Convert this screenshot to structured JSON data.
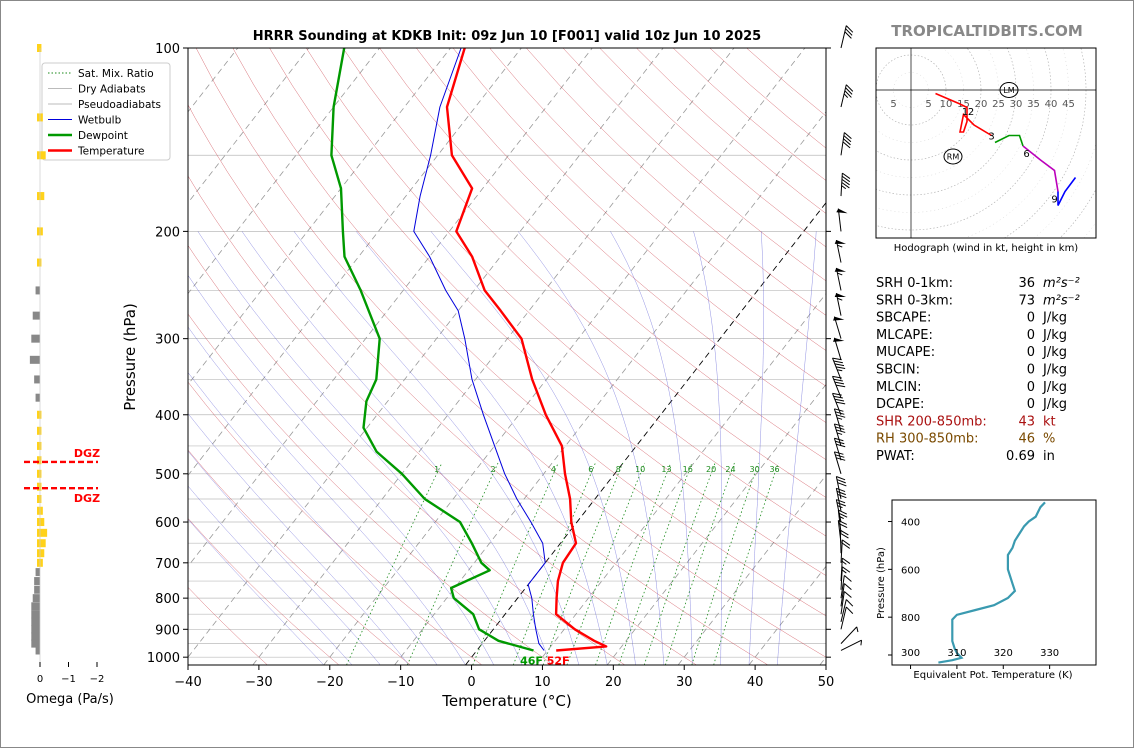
{
  "title": "HRRR Sounding at KDKB Init: 09z Jun 10 [F001] valid 10z Jun 10 2025",
  "brand": "TROPICALTIDBITS.COM",
  "chart_data": [
    {
      "type": "line",
      "name": "skew-t",
      "xlabel": "Temperature (°C)",
      "ylabel": "Pressure (hPa)",
      "xlim": [
        -40,
        50
      ],
      "ylim": [
        1030,
        100
      ],
      "y_scale": "log",
      "x_ticks": [
        "−40",
        "−30",
        "−20",
        "−10",
        "0",
        "10",
        "20",
        "30",
        "40",
        "50"
      ],
      "x_tick_values": [
        -40,
        -30,
        -20,
        -10,
        0,
        10,
        20,
        30,
        40,
        50
      ],
      "y_ticks": [
        "100",
        "200",
        "300",
        "400",
        "500",
        "600",
        "700",
        "800",
        "900",
        "1000"
      ],
      "y_tick_values": [
        100,
        200,
        300,
        400,
        500,
        600,
        700,
        800,
        900,
        1000
      ],
      "legend": [
        "Sat. Mix. Ratio",
        "Dry Adiabats",
        "Pseudoadiabats",
        "Wetbulb",
        "Dewpoint",
        "Temperature"
      ],
      "legend_position": "top-left",
      "colors": {
        "temperature": "#ff0000",
        "dewpoint": "#009900",
        "wetbulb": "#0000dd",
        "dry": "#c8323c",
        "moist": "#4a4ad0",
        "mixing": "#1a8a1a"
      },
      "mixing_labels": [
        "1",
        "2",
        "4",
        "6",
        "8",
        "10",
        "13",
        "16",
        "20",
        "24",
        "30",
        "36"
      ],
      "mixing_values": [
        1,
        2,
        4,
        6,
        8,
        10,
        13,
        16,
        20,
        24,
        30,
        36
      ],
      "surface_temp_label": "52F",
      "surface_dew_label": "46F",
      "temperature": [
        [
          975,
          11.2
        ],
        [
          960,
          17.8
        ],
        [
          940,
          15.5
        ],
        [
          900,
          11.5
        ],
        [
          850,
          7.2
        ],
        [
          800,
          5.5
        ],
        [
          750,
          3.8
        ],
        [
          700,
          2.5
        ],
        [
          650,
          2.2
        ],
        [
          600,
          -0.8
        ],
        [
          550,
          -3.5
        ],
        [
          500,
          -7.0
        ],
        [
          450,
          -10.5
        ],
        [
          400,
          -16.2
        ],
        [
          350,
          -22.0
        ],
        [
          300,
          -28.0
        ],
        [
          270,
          -34.0
        ],
        [
          250,
          -38.5
        ],
        [
          220,
          -44.0
        ],
        [
          200,
          -49.0
        ],
        [
          170,
          -51.5
        ],
        [
          150,
          -58.0
        ],
        [
          125,
          -64.0
        ],
        [
          100,
          -68.0
        ]
      ],
      "dewpoint": [
        [
          975,
          8.0
        ],
        [
          940,
          2.0
        ],
        [
          900,
          -2.0
        ],
        [
          850,
          -4.5
        ],
        [
          800,
          -9.0
        ],
        [
          770,
          -10.5
        ],
        [
          720,
          -7.0
        ],
        [
          700,
          -9.0
        ],
        [
          650,
          -12.5
        ],
        [
          600,
          -16.5
        ],
        [
          550,
          -24.0
        ],
        [
          500,
          -30.0
        ],
        [
          460,
          -36.0
        ],
        [
          420,
          -40.5
        ],
        [
          380,
          -43.0
        ],
        [
          350,
          -44.0
        ],
        [
          300,
          -48.0
        ],
        [
          250,
          -56.0
        ],
        [
          220,
          -62.0
        ],
        [
          200,
          -65.0
        ],
        [
          170,
          -70.0
        ],
        [
          150,
          -75.0
        ],
        [
          125,
          -80.0
        ],
        [
          100,
          -85.0
        ]
      ],
      "wetbulb": [
        [
          975,
          9.5
        ],
        [
          950,
          8.0
        ],
        [
          900,
          6.0
        ],
        [
          850,
          4.0
        ],
        [
          800,
          2.0
        ],
        [
          760,
          0.0
        ],
        [
          700,
          0.0
        ],
        [
          650,
          -2.5
        ],
        [
          600,
          -6.5
        ],
        [
          550,
          -11.0
        ],
        [
          500,
          -15.5
        ],
        [
          450,
          -20.0
        ],
        [
          400,
          -25.0
        ],
        [
          350,
          -30.5
        ],
        [
          300,
          -36.0
        ],
        [
          270,
          -40.0
        ],
        [
          250,
          -44.0
        ],
        [
          220,
          -50.0
        ],
        [
          200,
          -55.0
        ],
        [
          175,
          -58.0
        ],
        [
          150,
          -61.0
        ],
        [
          125,
          -65.0
        ],
        [
          100,
          -68.5
        ]
      ]
    },
    {
      "type": "line",
      "name": "hodograph",
      "caption": "Hodograph (wind in kt, height in km)",
      "ring_labels": [
        "5",
        "5",
        "10",
        "15",
        "20",
        "25",
        "30",
        "35",
        "40",
        "45"
      ],
      "ring_values": [
        -5,
        5,
        10,
        15,
        20,
        25,
        30,
        35,
        40,
        45
      ],
      "height_labels": [
        "1",
        "2",
        "3",
        "6",
        "9"
      ],
      "lm_label": "LM",
      "rm_label": "RM",
      "segments": [
        {
          "name": "0-3km",
          "color": "#ff0000",
          "u_v": [
            [
              7,
              -1
            ],
            [
              14,
              -4
            ],
            [
              16,
              -5
            ],
            [
              16,
              -9
            ],
            [
              15,
              -12
            ],
            [
              14,
              -12
            ],
            [
              15,
              -7
            ],
            [
              18,
              -10
            ],
            [
              23,
              -13
            ]
          ]
        },
        {
          "name": "3-6km",
          "color": "#009900",
          "u_v": [
            [
              24,
              -15
            ],
            [
              28,
              -13
            ],
            [
              31,
              -13
            ],
            [
              32,
              -16
            ]
          ]
        },
        {
          "name": "6-9km",
          "color": "#bb00bb",
          "u_v": [
            [
              32,
              -16
            ],
            [
              37,
              -20
            ],
            [
              41,
              -23
            ],
            [
              42,
              -29
            ]
          ]
        },
        {
          "name": "9-12km",
          "color": "#0000ff",
          "u_v": [
            [
              42,
              -29
            ],
            [
              42,
              -33
            ],
            [
              44,
              -29
            ],
            [
              47,
              -25
            ]
          ]
        }
      ],
      "lm_uv": [
        28,
        0
      ],
      "rm_uv": [
        12,
        -19
      ],
      "height_marks": {
        "1": [
          16,
          -6
        ],
        "2": [
          16,
          -6
        ],
        "3": [
          23,
          -13
        ],
        "6": [
          33,
          -18
        ],
        "9": [
          41,
          -31
        ]
      }
    },
    {
      "type": "line",
      "name": "theta-e",
      "xlabel": "Equivalent Pot. Temperature (K)",
      "ylabel": "Pressure (hPa)",
      "xlim": [
        296,
        340
      ],
      "ylim": [
        1000,
        310
      ],
      "x_ticks": [
        "300",
        "310",
        "320",
        "330"
      ],
      "x_tick_values": [
        300,
        310,
        320,
        330
      ],
      "y_ticks": [
        "400",
        "600",
        "800"
      ],
      "y_tick_values": [
        400,
        600,
        800
      ],
      "color": "#3a9ab0",
      "values": [
        [
          990,
          306
        ],
        [
          980,
          309
        ],
        [
          970,
          311
        ],
        [
          950,
          310
        ],
        [
          930,
          309.5
        ],
        [
          900,
          309
        ],
        [
          870,
          309
        ],
        [
          840,
          309
        ],
        [
          810,
          309
        ],
        [
          790,
          310
        ],
        [
          770,
          314
        ],
        [
          750,
          318
        ],
        [
          720,
          321
        ],
        [
          690,
          322.5
        ],
        [
          660,
          322
        ],
        [
          630,
          321.5
        ],
        [
          600,
          321
        ],
        [
          570,
          321
        ],
        [
          540,
          321
        ],
        [
          510,
          322
        ],
        [
          480,
          322.5
        ],
        [
          450,
          323.5
        ],
        [
          420,
          324.5
        ],
        [
          400,
          325.5
        ],
        [
          380,
          327
        ],
        [
          360,
          327.5
        ],
        [
          340,
          328
        ],
        [
          320,
          329
        ]
      ]
    },
    {
      "type": "bar",
      "name": "omega",
      "xlabel": "Omega (Pa/s)",
      "x_ticks": [
        "0",
        "−1",
        "−2"
      ],
      "x_tick_values": [
        0,
        -1,
        -2
      ],
      "dgz_label": "DGZ",
      "dgz_pressures": [
        478,
        528
      ],
      "colors": {
        "up": "#ffd21a",
        "down": "#888888"
      },
      "values": [
        [
          100,
          -0.05
        ],
        [
          130,
          -0.1
        ],
        [
          150,
          -0.2
        ],
        [
          175,
          -0.15
        ],
        [
          200,
          -0.1
        ],
        [
          225,
          -0.05
        ],
        [
          250,
          0.05
        ],
        [
          275,
          0.15
        ],
        [
          300,
          0.2
        ],
        [
          325,
          0.25
        ],
        [
          350,
          0.1
        ],
        [
          375,
          0.05
        ],
        [
          400,
          -0.05
        ],
        [
          425,
          -0.05
        ],
        [
          450,
          -0.05
        ],
        [
          475,
          -0.05
        ],
        [
          500,
          -0.05
        ],
        [
          525,
          -0.05
        ],
        [
          550,
          -0.05
        ],
        [
          575,
          -0.1
        ],
        [
          600,
          -0.15
        ],
        [
          625,
          -0.25
        ],
        [
          650,
          -0.2
        ],
        [
          675,
          -0.15
        ],
        [
          700,
          -0.1
        ],
        [
          725,
          0.05
        ],
        [
          750,
          0.1
        ],
        [
          775,
          0.1
        ],
        [
          800,
          0.15
        ],
        [
          825,
          0.2
        ],
        [
          850,
          0.2
        ],
        [
          875,
          0.2
        ],
        [
          900,
          0.2
        ],
        [
          925,
          0.2
        ],
        [
          950,
          0.2
        ],
        [
          975,
          0.05
        ]
      ]
    },
    {
      "type": "table",
      "name": "parameters",
      "rows": [
        {
          "label": "SRH 0-1km:",
          "value": "36",
          "unit": "m²s⁻²",
          "color": "#000000"
        },
        {
          "label": "SRH 0-3km:",
          "value": "73",
          "unit": "m²s⁻²",
          "color": "#000000"
        },
        {
          "label": "SBCAPE:",
          "value": "0",
          "unit": "J/kg",
          "color": "#000000"
        },
        {
          "label": "MLCAPE:",
          "value": "0",
          "unit": "J/kg",
          "color": "#000000"
        },
        {
          "label": "MUCAPE:",
          "value": "0",
          "unit": "J/kg",
          "color": "#000000"
        },
        {
          "label": "SBCIN:",
          "value": "0",
          "unit": "J/kg",
          "color": "#000000"
        },
        {
          "label": "MLCIN:",
          "value": "0",
          "unit": "J/kg",
          "color": "#000000"
        },
        {
          "label": "DCAPE:",
          "value": "0",
          "unit": "J/kg",
          "color": "#000000"
        },
        {
          "label": "SHR 200-850mb:",
          "value": "43",
          "unit": "kt",
          "color": "#aa1111"
        },
        {
          "label": "RH 300-850mb:",
          "value": "46",
          "unit": "%",
          "color": "#7a4a00"
        },
        {
          "label": "PWAT:",
          "value": "0.69",
          "unit": "in",
          "color": "#000000"
        }
      ]
    },
    {
      "type": "scatter",
      "name": "wind-barbs",
      "values": [
        [
          100,
          300,
          30
        ],
        [
          125,
          300,
          35
        ],
        [
          150,
          295,
          40
        ],
        [
          175,
          290,
          45
        ],
        [
          200,
          280,
          50
        ],
        [
          225,
          275,
          55
        ],
        [
          250,
          275,
          55
        ],
        [
          275,
          275,
          55
        ],
        [
          300,
          270,
          50
        ],
        [
          325,
          270,
          50
        ],
        [
          350,
          265,
          45
        ],
        [
          375,
          265,
          40
        ],
        [
          400,
          265,
          38
        ],
        [
          425,
          270,
          35
        ],
        [
          450,
          270,
          35
        ],
        [
          475,
          270,
          32
        ],
        [
          500,
          270,
          30
        ],
        [
          550,
          275,
          30
        ],
        [
          575,
          275,
          28
        ],
        [
          600,
          275,
          25
        ],
        [
          625,
          280,
          25
        ],
        [
          650,
          280,
          22
        ],
        [
          675,
          285,
          20
        ],
        [
          700,
          290,
          18
        ],
        [
          750,
          290,
          15
        ],
        [
          775,
          290,
          13
        ],
        [
          800,
          295,
          12
        ],
        [
          825,
          295,
          10
        ],
        [
          850,
          295,
          10
        ],
        [
          875,
          300,
          8
        ],
        [
          900,
          300,
          8
        ],
        [
          950,
          330,
          5
        ],
        [
          975,
          350,
          5
        ]
      ]
    }
  ]
}
